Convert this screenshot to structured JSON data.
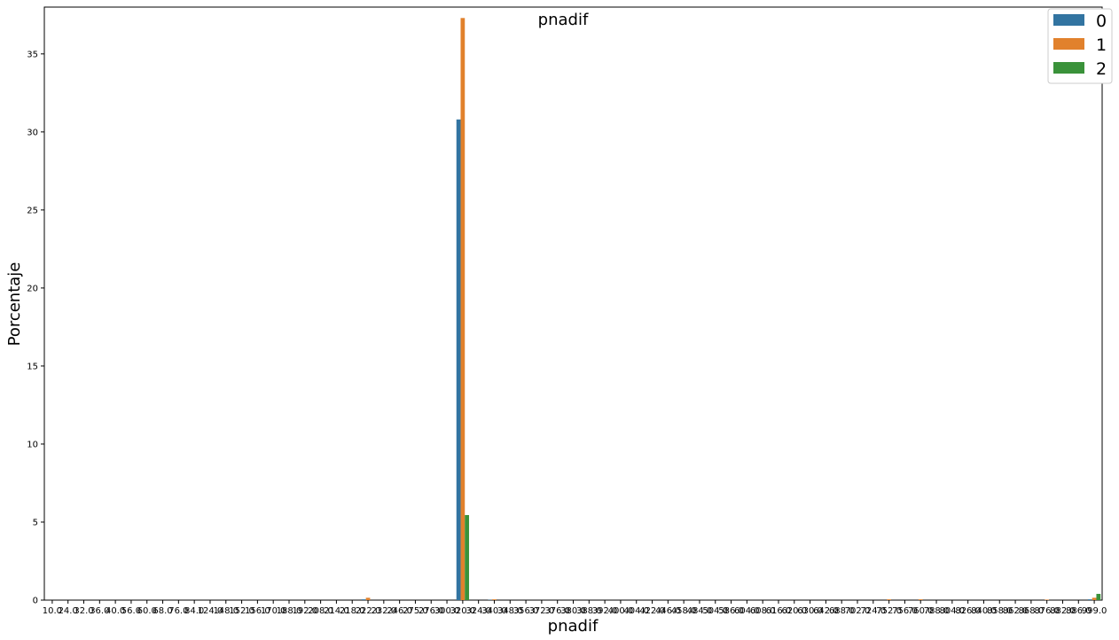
{
  "chart_data": {
    "type": "bar",
    "title": "pnadif",
    "xlabel": "pnadif",
    "ylabel": "Porcentaje",
    "ylim": [
      0,
      38
    ],
    "yticks": [
      0,
      5,
      10,
      15,
      20,
      25,
      30,
      35
    ],
    "grid": false,
    "legend_position": "top-right",
    "categories": [
      "10.0",
      "24.0",
      "32.0",
      "36.0",
      "40.0",
      "56.0",
      "60.0",
      "68.0",
      "76.0",
      "84.0",
      "124.0",
      "148.0",
      "152.0",
      "156.0",
      "170.0",
      "188.0",
      "192.0",
      "208.0",
      "214.0",
      "218.0",
      "222.0",
      "232.0",
      "246.0",
      "275.0",
      "276.0",
      "300.0",
      "320.0",
      "324.0",
      "340.0",
      "348.0",
      "356.0",
      "372.0",
      "376.0",
      "380.0",
      "388.0",
      "392.0",
      "400.0",
      "404.0",
      "422.0",
      "446.0",
      "458.0",
      "484.0",
      "504.0",
      "586.0",
      "604.0",
      "608.0",
      "616.0",
      "620.0",
      "630.0",
      "642.0",
      "688.0",
      "702.0",
      "724.0",
      "752.0",
      "756.0",
      "760.0",
      "788.0",
      "804.0",
      "826.0",
      "840.0",
      "858.0",
      "862.0",
      "868.0",
      "876.0",
      "882.0",
      "886.0",
      "999.0"
    ],
    "series": [
      {
        "name": "0",
        "color": "#3274a1",
        "values": [
          0,
          0,
          0,
          0,
          0,
          0,
          0,
          0,
          0,
          0,
          0,
          0,
          0,
          0,
          0,
          0,
          0,
          0,
          0,
          0,
          0.05,
          0,
          0,
          0,
          0,
          0,
          30.8,
          0,
          0.02,
          0,
          0,
          0,
          0,
          0,
          0,
          0,
          0,
          0,
          0,
          0,
          0,
          0,
          0,
          0,
          0,
          0,
          0,
          0,
          0,
          0,
          0,
          0,
          0,
          0,
          0,
          0,
          0,
          0,
          0,
          0,
          0,
          0,
          0,
          0,
          0,
          0,
          0.05
        ]
      },
      {
        "name": "1",
        "color": "#e1812c",
        "values": [
          0,
          0,
          0,
          0,
          0,
          0,
          0,
          0,
          0,
          0,
          0,
          0,
          0,
          0,
          0,
          0,
          0,
          0,
          0,
          0,
          0.15,
          0,
          0,
          0,
          0,
          0,
          37.3,
          0,
          0.05,
          0,
          0,
          0,
          0,
          0,
          0,
          0,
          0,
          0,
          0,
          0,
          0,
          0,
          0,
          0,
          0,
          0,
          0,
          0,
          0,
          0,
          0,
          0,
          0,
          0.05,
          0,
          0.05,
          0,
          0,
          0,
          0,
          0,
          0,
          0,
          0.03,
          0,
          0,
          0.15
        ]
      },
      {
        "name": "2",
        "color": "#3a923a",
        "values": [
          0,
          0,
          0,
          0,
          0,
          0,
          0,
          0,
          0,
          0,
          0,
          0,
          0,
          0,
          0,
          0,
          0,
          0,
          0,
          0,
          0,
          0,
          0,
          0,
          0,
          0,
          5.45,
          0,
          0,
          0,
          0,
          0,
          0,
          0,
          0,
          0,
          0,
          0,
          0,
          0,
          0,
          0,
          0,
          0,
          0,
          0,
          0,
          0,
          0,
          0,
          0,
          0,
          0,
          0,
          0,
          0,
          0,
          0,
          0,
          0,
          0,
          0,
          0,
          0,
          0,
          0,
          0.4
        ]
      }
    ]
  }
}
